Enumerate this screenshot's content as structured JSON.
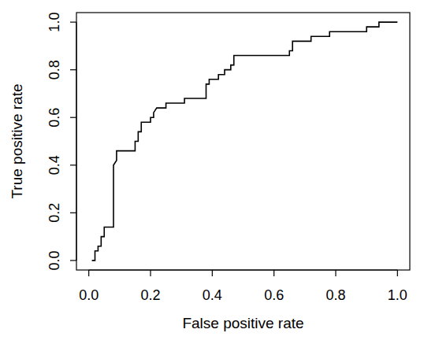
{
  "chart_data": {
    "type": "line",
    "x_label": "False positive rate",
    "y_label": "True positive rate",
    "x": [
      0.01,
      0.02,
      0.02,
      0.03,
      0.03,
      0.04,
      0.04,
      0.05,
      0.05,
      0.08,
      0.08,
      0.09,
      0.09,
      0.15,
      0.15,
      0.16,
      0.16,
      0.17,
      0.17,
      0.2,
      0.2,
      0.21,
      0.21,
      0.22,
      0.25,
      0.25,
      0.31,
      0.31,
      0.38,
      0.38,
      0.39,
      0.39,
      0.42,
      0.42,
      0.44,
      0.44,
      0.46,
      0.46,
      0.47,
      0.47,
      0.65,
      0.65,
      0.66,
      0.66,
      0.72,
      0.72,
      0.78,
      0.78,
      0.9,
      0.9,
      0.94,
      0.94,
      1.0
    ],
    "values": [
      0,
      0,
      0.04,
      0.04,
      0.06,
      0.06,
      0.1,
      0.1,
      0.14,
      0.14,
      0.4,
      0.42,
      0.46,
      0.46,
      0.5,
      0.5,
      0.54,
      0.54,
      0.58,
      0.58,
      0.6,
      0.6,
      0.62,
      0.64,
      0.64,
      0.66,
      0.66,
      0.68,
      0.68,
      0.74,
      0.74,
      0.76,
      0.76,
      0.78,
      0.78,
      0.8,
      0.8,
      0.82,
      0.82,
      0.86,
      0.86,
      0.88,
      0.88,
      0.92,
      0.92,
      0.94,
      0.94,
      0.96,
      0.96,
      0.98,
      0.98,
      1.0,
      1.0
    ],
    "color": "#000000",
    "xlim": [
      -0.04,
      1.04
    ],
    "ylim": [
      -0.04,
      1.04
    ],
    "xticks": [
      {
        "value": 0,
        "label": "0.0"
      },
      {
        "value": 0.2,
        "label": "0.2"
      },
      {
        "value": 0.4,
        "label": "0.4"
      },
      {
        "value": 0.6,
        "label": "0.6"
      },
      {
        "value": 0.8,
        "label": "0.8"
      },
      {
        "value": 1,
        "label": "1.0"
      }
    ],
    "yticks": [
      {
        "value": 0,
        "label": "0.0"
      },
      {
        "value": 0.2,
        "label": "0.2"
      },
      {
        "value": 0.4,
        "label": "0.4"
      },
      {
        "value": 0.6,
        "label": "0.6"
      },
      {
        "value": 0.8,
        "label": "0.8"
      },
      {
        "value": 1,
        "label": "1.0"
      }
    ],
    "grid": false
  }
}
